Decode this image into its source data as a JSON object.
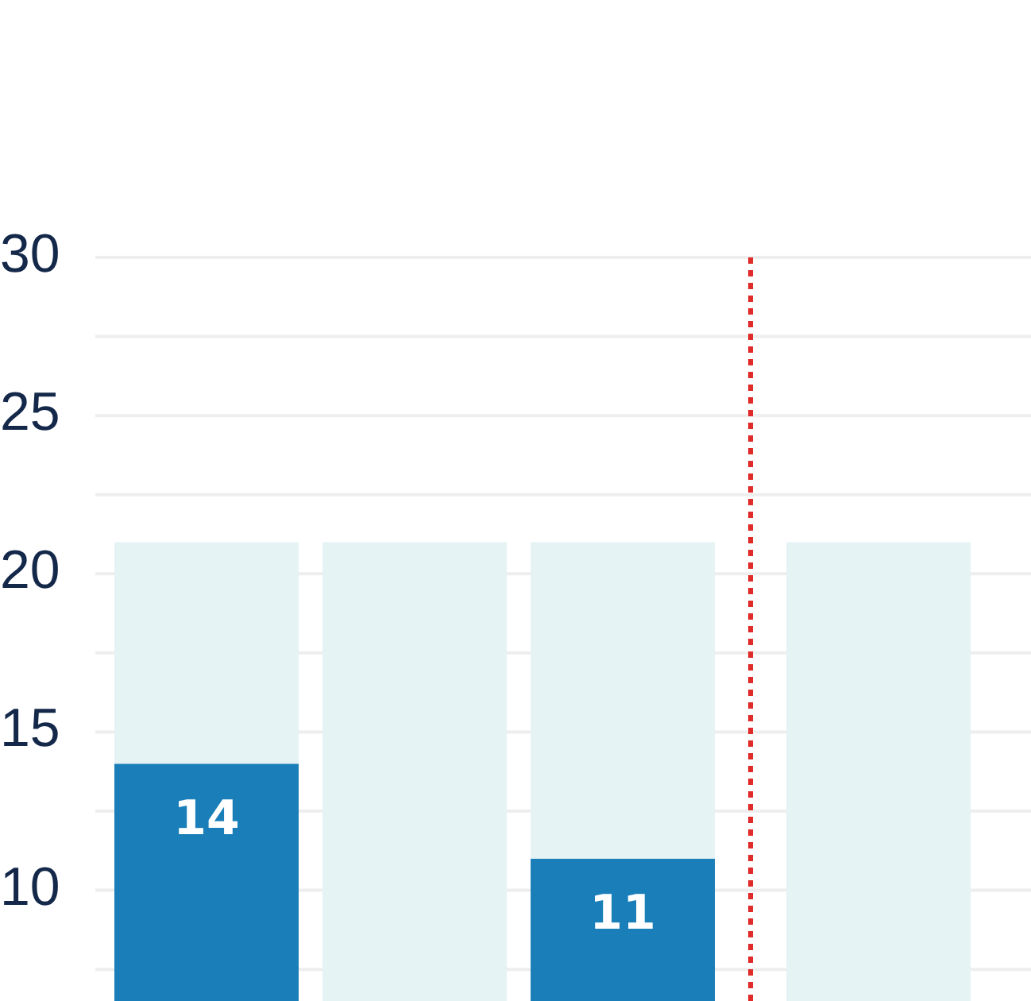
{
  "chart_data": {
    "type": "bar",
    "categories": [
      null,
      null,
      null,
      null
    ],
    "stacked": true,
    "series": [
      {
        "color": "#1a7fb8",
        "values": [
          14,
          null,
          11,
          null
        ],
        "value_labels": [
          "14",
          null,
          "11",
          null
        ]
      },
      {
        "color": "#e6f3f5",
        "values": [
          7,
          21,
          10,
          21
        ]
      }
    ],
    "ylim": [
      6.5,
      30
    ],
    "yticks": [
      {
        "value": 7.5,
        "label": null
      },
      10,
      {
        "value": 12.5,
        "label": null
      },
      15,
      {
        "value": 17.5,
        "label": null
      },
      20,
      {
        "value": 22.5,
        "label": null
      },
      25,
      {
        "value": 27.5,
        "label": null
      },
      30
    ],
    "grid": "y"
  }
}
